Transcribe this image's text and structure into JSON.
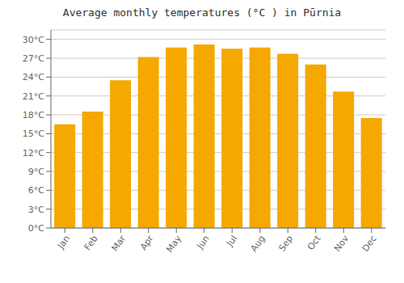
{
  "chart_data": {
    "type": "bar",
    "title": "Average monthly temperatures (°C ) in Pūrnia",
    "categories": [
      "Jan",
      "Feb",
      "Mar",
      "Apr",
      "May",
      "Jun",
      "Jul",
      "Aug",
      "Sep",
      "Oct",
      "Nov",
      "Dec"
    ],
    "values": [
      16.5,
      18.5,
      23.5,
      27.2,
      28.7,
      29.2,
      28.5,
      28.7,
      27.7,
      26.0,
      21.7,
      17.5
    ],
    "color": "#F5A800",
    "ylim": [
      0,
      31.5
    ],
    "yticks": [
      {
        "value": 0,
        "label": "0°C"
      },
      {
        "value": 3,
        "label": "3°C"
      },
      {
        "value": 6,
        "label": "6°C"
      },
      {
        "value": 9,
        "label": "9°C"
      },
      {
        "value": 12,
        "label": "12°C"
      },
      {
        "value": 15,
        "label": "15°C"
      },
      {
        "value": 18,
        "label": "18°C"
      },
      {
        "value": 21,
        "label": "21°C"
      },
      {
        "value": 24,
        "label": "24°C"
      },
      {
        "value": 27,
        "label": "27°C"
      },
      {
        "value": 30,
        "label": "30°C"
      }
    ],
    "grid": true
  }
}
